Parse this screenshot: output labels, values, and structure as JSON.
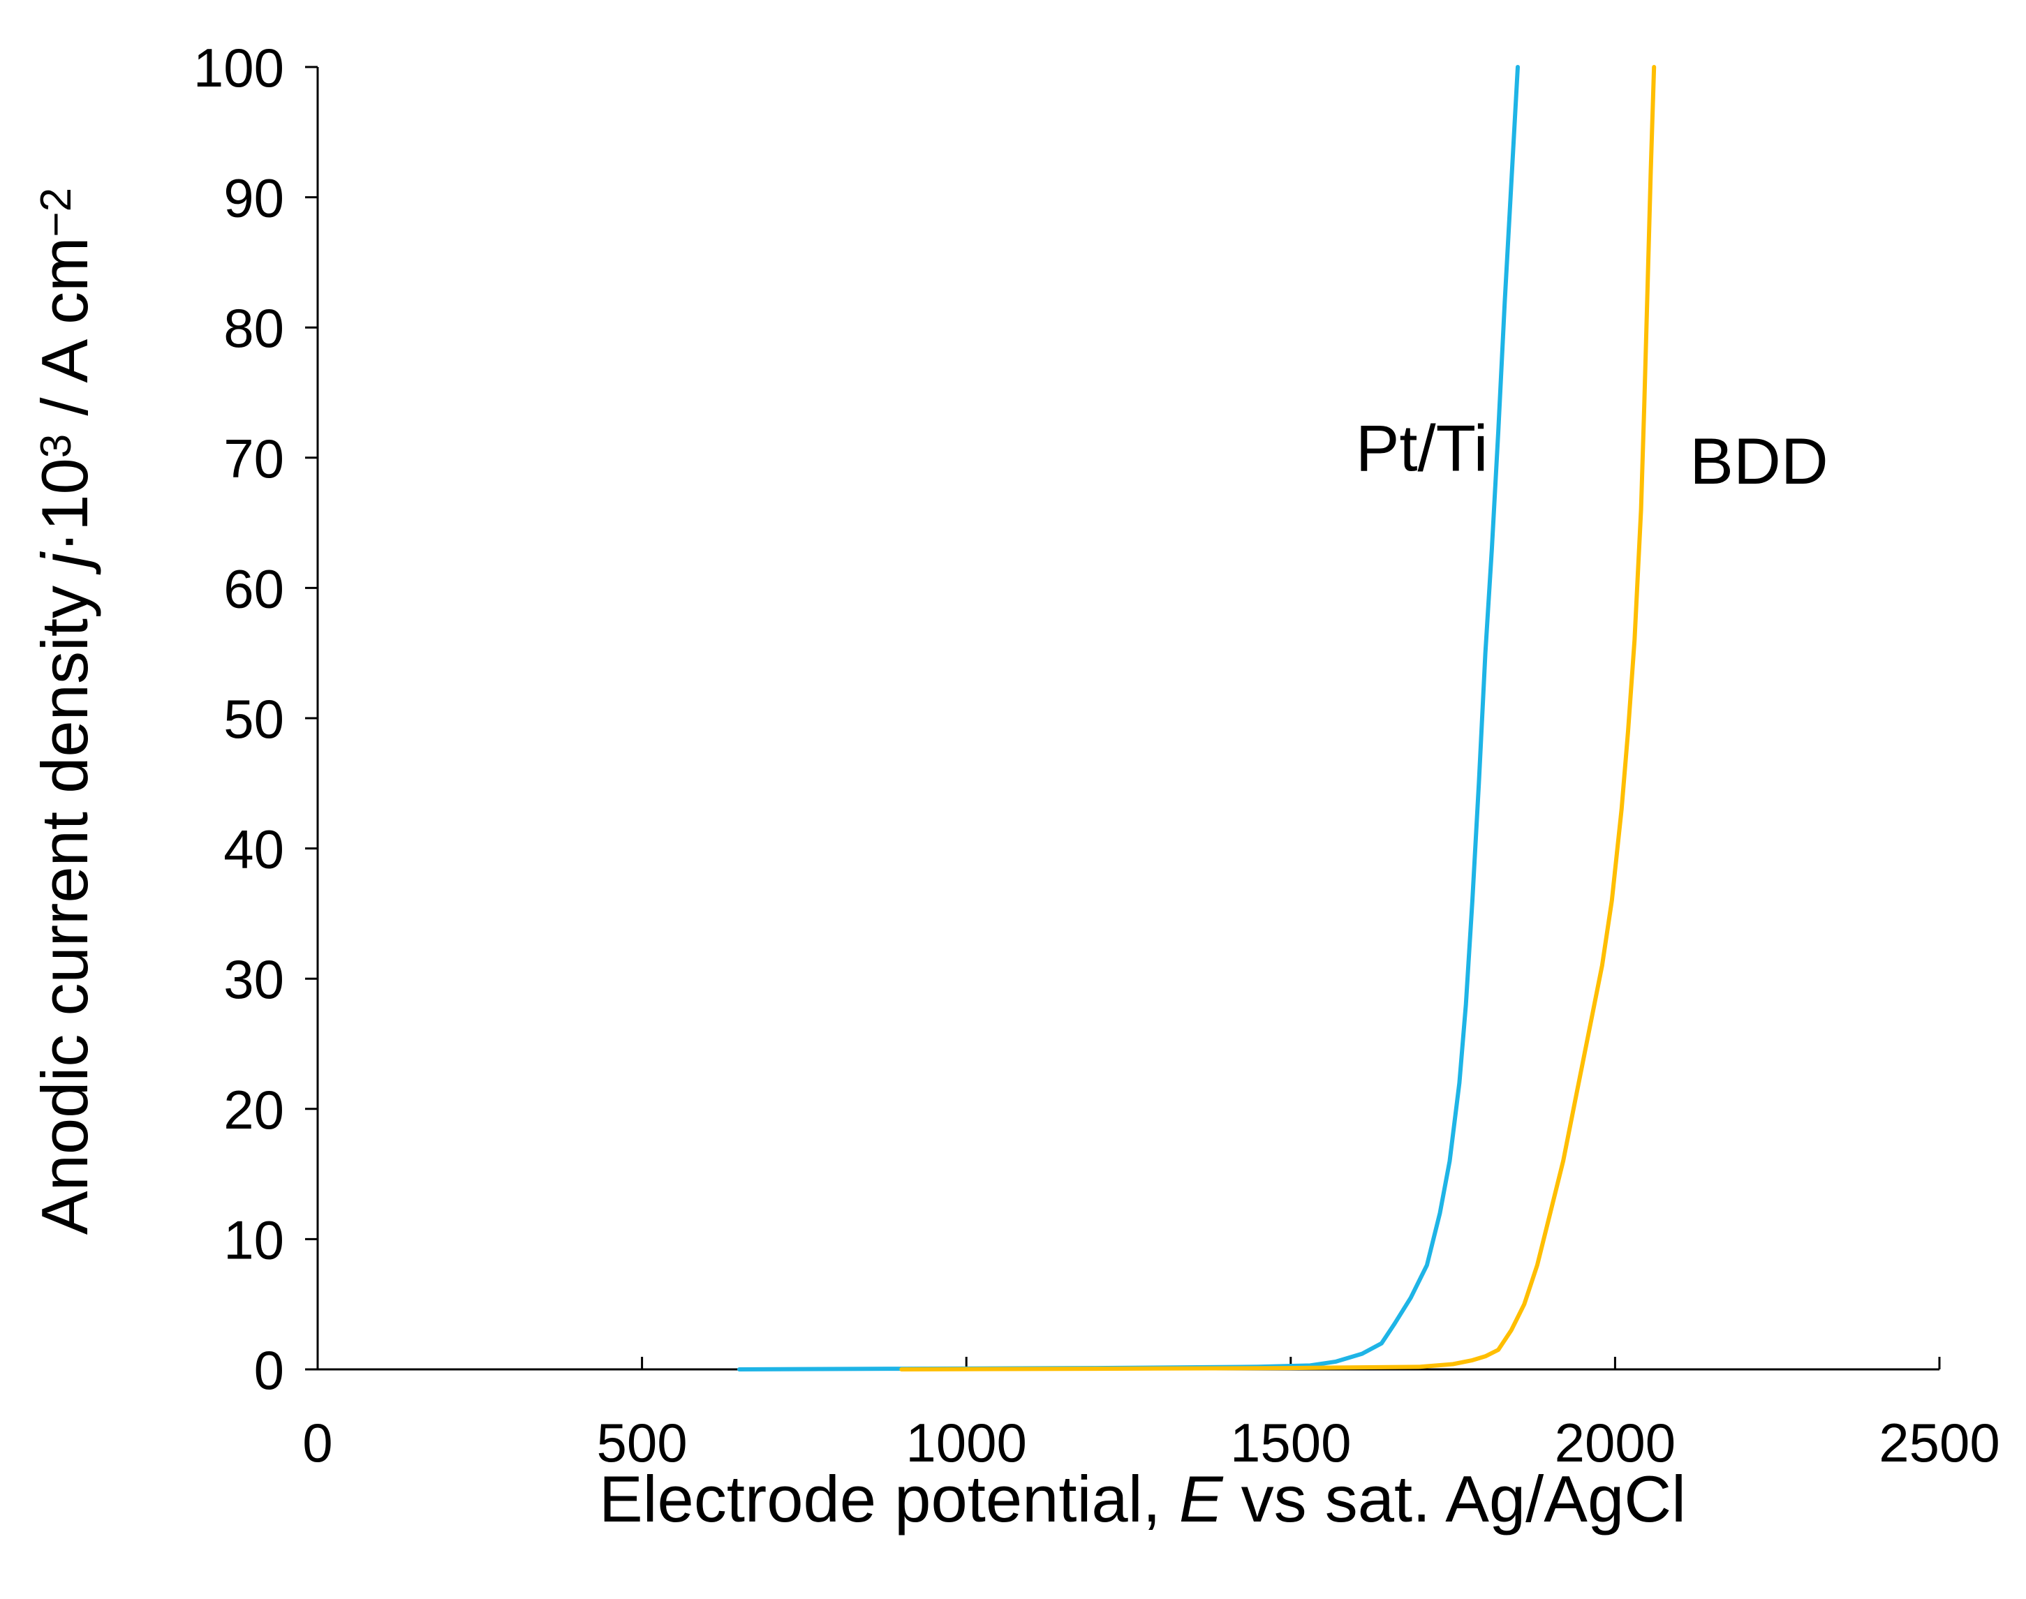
{
  "chart_data": {
    "type": "line",
    "title": "",
    "xlabel": {
      "parts": [
        "Electrode potential, ",
        "E",
        " vs sat. Ag/AgCl"
      ]
    },
    "ylabel": {
      "parts": [
        "Anodic current density ",
        "j",
        "·10",
        "3",
        " / A cm",
        "−2"
      ]
    },
    "xlim": [
      0,
      2500
    ],
    "ylim": [
      0,
      100
    ],
    "xticks": [
      0,
      500,
      1000,
      1500,
      2000,
      2500
    ],
    "yticks": [
      0,
      10,
      20,
      30,
      40,
      50,
      60,
      70,
      80,
      90,
      100
    ],
    "grid": false,
    "series": [
      {
        "name": "Pt/Ti",
        "label": "Pt/Ti",
        "color": "#1EB4E6",
        "label_at": [
          1600,
          69
        ],
        "x": [
          650,
          900,
          1200,
          1450,
          1530,
          1570,
          1610,
          1640,
          1660,
          1685,
          1710,
          1730,
          1745,
          1760,
          1770,
          1780,
          1790,
          1800,
          1810,
          1820,
          1830,
          1840,
          1850
        ],
        "y": [
          0,
          0.05,
          0.1,
          0.2,
          0.3,
          0.6,
          1.2,
          2.0,
          3.5,
          5.5,
          8.0,
          12,
          16,
          22,
          28,
          36,
          45,
          55,
          63,
          72,
          82,
          91,
          100
        ]
      },
      {
        "name": "BDD",
        "label": "BDD",
        "color": "#FFBE00",
        "label_at": [
          2115,
          68
        ],
        "x": [
          900,
          1200,
          1500,
          1700,
          1750,
          1780,
          1800,
          1820,
          1840,
          1860,
          1880,
          1900,
          1920,
          1940,
          1960,
          1980,
          1995,
          2010,
          2020,
          2030,
          2040,
          2045,
          2050,
          2055,
          2060
        ],
        "y": [
          0,
          0.05,
          0.1,
          0.2,
          0.4,
          0.7,
          1.0,
          1.5,
          3.0,
          5.0,
          8.0,
          12,
          16,
          21,
          26,
          31,
          36,
          43,
          49,
          56,
          66,
          74,
          83,
          92,
          100
        ]
      }
    ]
  }
}
